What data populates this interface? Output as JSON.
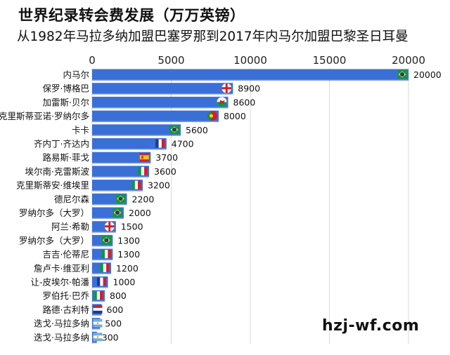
{
  "header": {
    "title": "世界纪录转会费发展（万万英镑）",
    "subtitle": "从1982年马拉多纳加盟巴塞罗那到2017年内马尔加盟巴黎圣日耳曼"
  },
  "watermark": "hzj-wf.com",
  "colors": {
    "bar": "#3a6fd8",
    "bar_shadow": "#1f4fb3",
    "grid": "#d9d9d9"
  },
  "chart_data": {
    "type": "bar",
    "orientation": "horizontal",
    "title": "世界纪录转会费发展（万万英镑）",
    "subtitle": "从1982年马拉多纳加盟巴塞罗那到2017年内马尔加盟巴黎圣日耳曼",
    "xlim": [
      0,
      20000
    ],
    "xticks": [
      0,
      5000,
      10000,
      15000,
      20000
    ],
    "x_axis_position": "top",
    "grid": true,
    "categories": [
      "内马尔",
      "保罗·博格巴",
      "加雷斯·贝尔",
      "克里斯蒂亚诺·罗纳尔多",
      "卡卡",
      "齐内丁·齐达内",
      "路易斯·菲戈",
      "埃尔南·克雷斯波",
      "克里斯蒂安·维埃里",
      "德尼尔森",
      "罗纳尔多（大罗）",
      "阿兰·希勒",
      "罗纳尔多（大罗）",
      "吉吉·伦蒂尼",
      "詹卢卡·维亚利",
      "让-皮埃尔·帕潘",
      "罗伯托·巴乔",
      "路德·古利特",
      "迭戈·马拉多纳",
      "迭戈·马拉多纳"
    ],
    "values": [
      20000,
      8900,
      8600,
      8000,
      5600,
      4700,
      3700,
      3600,
      3200,
      2200,
      2000,
      1500,
      1300,
      1300,
      1200,
      1000,
      800,
      600,
      500,
      300
    ],
    "data_labels": [
      "20000",
      "8900",
      "8600",
      "8000",
      "5600",
      "4700",
      "3700",
      "3600",
      "3200",
      "2200",
      "2000",
      "1500",
      "1300",
      "1300",
      "1200",
      "1000",
      "800",
      "600",
      "500",
      "300"
    ],
    "flags": [
      "brazil",
      "england",
      "wales",
      "portugal",
      "brazil",
      "france",
      "spain",
      "italy",
      "italy",
      "brazil",
      "brazil",
      "england",
      "brazil",
      "italy",
      "italy",
      "france",
      "italy",
      "netherlands",
      "argentina",
      "argentina"
    ]
  }
}
